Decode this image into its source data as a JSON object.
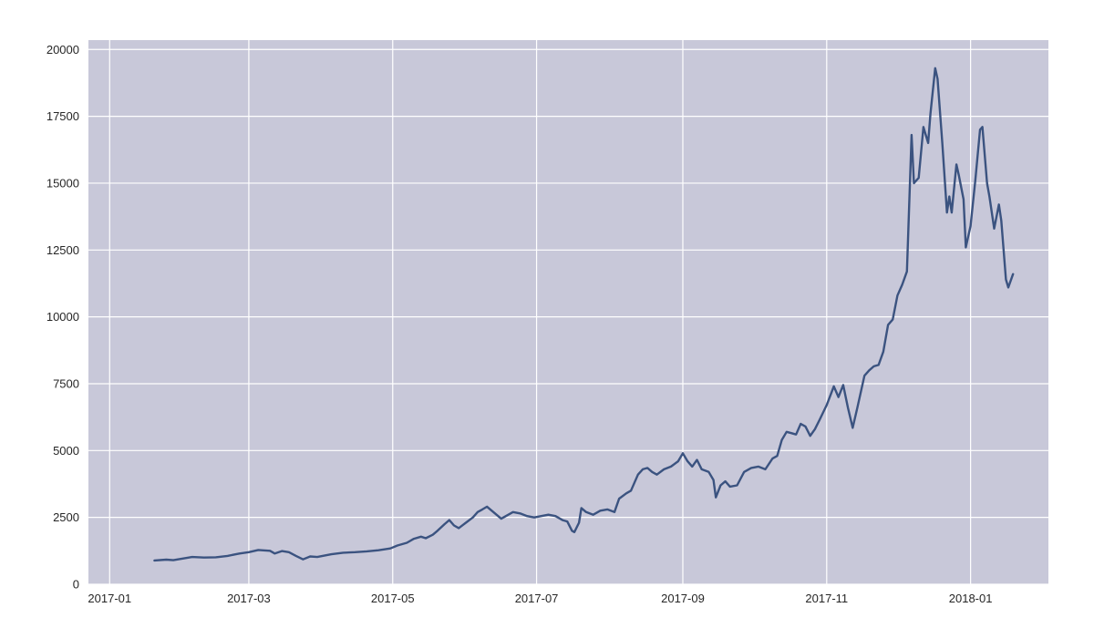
{
  "chart_data": {
    "type": "line",
    "title": "",
    "xlabel": "",
    "ylabel": "",
    "x_ticks": [
      "2017-01",
      "2017-03",
      "2017-05",
      "2017-07",
      "2017-09",
      "2017-11",
      "2018-01"
    ],
    "y_ticks": [
      0,
      2500,
      5000,
      7500,
      10000,
      12500,
      15000,
      17500,
      20000
    ],
    "xlim": [
      "2016-12-23",
      "2018-02-03"
    ],
    "ylim": [
      0,
      20350
    ],
    "grid": true,
    "colors": {
      "line": "#3b5380",
      "plot_background": "#c8c8d9",
      "grid": "#ffffff"
    },
    "series": [
      {
        "points": [
          [
            "2017-01-20",
            890
          ],
          [
            "2017-01-25",
            920
          ],
          [
            "2017-01-28",
            900
          ],
          [
            "2017-02-01",
            960
          ],
          [
            "2017-02-05",
            1020
          ],
          [
            "2017-02-10",
            1000
          ],
          [
            "2017-02-15",
            1010
          ],
          [
            "2017-02-20",
            1060
          ],
          [
            "2017-02-25",
            1150
          ],
          [
            "2017-03-01",
            1200
          ],
          [
            "2017-03-05",
            1280
          ],
          [
            "2017-03-10",
            1250
          ],
          [
            "2017-03-12",
            1150
          ],
          [
            "2017-03-15",
            1240
          ],
          [
            "2017-03-18",
            1200
          ],
          [
            "2017-03-21",
            1060
          ],
          [
            "2017-03-24",
            930
          ],
          [
            "2017-03-27",
            1040
          ],
          [
            "2017-03-30",
            1020
          ],
          [
            "2017-04-05",
            1120
          ],
          [
            "2017-04-10",
            1180
          ],
          [
            "2017-04-15",
            1200
          ],
          [
            "2017-04-20",
            1230
          ],
          [
            "2017-04-25",
            1270
          ],
          [
            "2017-04-30",
            1340
          ],
          [
            "2017-05-03",
            1450
          ],
          [
            "2017-05-07",
            1550
          ],
          [
            "2017-05-10",
            1700
          ],
          [
            "2017-05-13",
            1780
          ],
          [
            "2017-05-15",
            1720
          ],
          [
            "2017-05-18",
            1850
          ],
          [
            "2017-05-20",
            2000
          ],
          [
            "2017-05-23",
            2250
          ],
          [
            "2017-05-25",
            2400
          ],
          [
            "2017-05-27",
            2200
          ],
          [
            "2017-05-29",
            2100
          ],
          [
            "2017-06-01",
            2300
          ],
          [
            "2017-06-04",
            2500
          ],
          [
            "2017-06-06",
            2700
          ],
          [
            "2017-06-08",
            2800
          ],
          [
            "2017-06-10",
            2900
          ],
          [
            "2017-06-12",
            2750
          ],
          [
            "2017-06-14",
            2600
          ],
          [
            "2017-06-16",
            2450
          ],
          [
            "2017-06-18",
            2550
          ],
          [
            "2017-06-21",
            2700
          ],
          [
            "2017-06-24",
            2650
          ],
          [
            "2017-06-27",
            2550
          ],
          [
            "2017-06-30",
            2500
          ],
          [
            "2017-07-03",
            2550
          ],
          [
            "2017-07-06",
            2600
          ],
          [
            "2017-07-09",
            2550
          ],
          [
            "2017-07-12",
            2400
          ],
          [
            "2017-07-14",
            2350
          ],
          [
            "2017-07-16",
            2000
          ],
          [
            "2017-07-17",
            1950
          ],
          [
            "2017-07-19",
            2300
          ],
          [
            "2017-07-20",
            2850
          ],
          [
            "2017-07-22",
            2700
          ],
          [
            "2017-07-25",
            2600
          ],
          [
            "2017-07-28",
            2750
          ],
          [
            "2017-07-31",
            2800
          ],
          [
            "2017-08-03",
            2700
          ],
          [
            "2017-08-05",
            3200
          ],
          [
            "2017-08-08",
            3400
          ],
          [
            "2017-08-10",
            3500
          ],
          [
            "2017-08-13",
            4100
          ],
          [
            "2017-08-15",
            4300
          ],
          [
            "2017-08-17",
            4350
          ],
          [
            "2017-08-19",
            4200
          ],
          [
            "2017-08-21",
            4100
          ],
          [
            "2017-08-24",
            4300
          ],
          [
            "2017-08-27",
            4400
          ],
          [
            "2017-08-30",
            4600
          ],
          [
            "2017-09-01",
            4900
          ],
          [
            "2017-09-03",
            4600
          ],
          [
            "2017-09-05",
            4400
          ],
          [
            "2017-09-07",
            4650
          ],
          [
            "2017-09-09",
            4300
          ],
          [
            "2017-09-12",
            4200
          ],
          [
            "2017-09-14",
            3900
          ],
          [
            "2017-09-15",
            3250
          ],
          [
            "2017-09-17",
            3700
          ],
          [
            "2017-09-19",
            3850
          ],
          [
            "2017-09-21",
            3650
          ],
          [
            "2017-09-24",
            3700
          ],
          [
            "2017-09-27",
            4200
          ],
          [
            "2017-09-30",
            4350
          ],
          [
            "2017-10-03",
            4400
          ],
          [
            "2017-10-06",
            4300
          ],
          [
            "2017-10-09",
            4700
          ],
          [
            "2017-10-11",
            4800
          ],
          [
            "2017-10-13",
            5400
          ],
          [
            "2017-10-15",
            5700
          ],
          [
            "2017-10-17",
            5650
          ],
          [
            "2017-10-19",
            5600
          ],
          [
            "2017-10-21",
            6000
          ],
          [
            "2017-10-23",
            5900
          ],
          [
            "2017-10-25",
            5550
          ],
          [
            "2017-10-27",
            5800
          ],
          [
            "2017-10-29",
            6150
          ],
          [
            "2017-11-01",
            6700
          ],
          [
            "2017-11-04",
            7400
          ],
          [
            "2017-11-06",
            7000
          ],
          [
            "2017-11-08",
            7450
          ],
          [
            "2017-11-10",
            6600
          ],
          [
            "2017-11-12",
            5850
          ],
          [
            "2017-11-14",
            6600
          ],
          [
            "2017-11-17",
            7800
          ],
          [
            "2017-11-19",
            8000
          ],
          [
            "2017-11-21",
            8150
          ],
          [
            "2017-11-23",
            8200
          ],
          [
            "2017-11-25",
            8700
          ],
          [
            "2017-11-27",
            9700
          ],
          [
            "2017-11-29",
            9900
          ],
          [
            "2017-12-01",
            10800
          ],
          [
            "2017-12-03",
            11200
          ],
          [
            "2017-12-05",
            11700
          ],
          [
            "2017-12-07",
            16800
          ],
          [
            "2017-12-08",
            15000
          ],
          [
            "2017-12-10",
            15200
          ],
          [
            "2017-12-12",
            17100
          ],
          [
            "2017-12-14",
            16500
          ],
          [
            "2017-12-15",
            17600
          ],
          [
            "2017-12-17",
            19300
          ],
          [
            "2017-12-18",
            18900
          ],
          [
            "2017-12-20",
            16500
          ],
          [
            "2017-12-22",
            13900
          ],
          [
            "2017-12-23",
            14500
          ],
          [
            "2017-12-24",
            13900
          ],
          [
            "2017-12-26",
            15700
          ],
          [
            "2017-12-27",
            15300
          ],
          [
            "2017-12-29",
            14400
          ],
          [
            "2017-12-30",
            12600
          ],
          [
            "2018-01-01",
            13400
          ],
          [
            "2018-01-03",
            15100
          ],
          [
            "2018-01-05",
            17000
          ],
          [
            "2018-01-06",
            17100
          ],
          [
            "2018-01-08",
            15000
          ],
          [
            "2018-01-09",
            14500
          ],
          [
            "2018-01-11",
            13300
          ],
          [
            "2018-01-13",
            14200
          ],
          [
            "2018-01-14",
            13600
          ],
          [
            "2018-01-16",
            11400
          ],
          [
            "2018-01-17",
            11100
          ],
          [
            "2018-01-19",
            11600
          ]
        ]
      }
    ]
  }
}
